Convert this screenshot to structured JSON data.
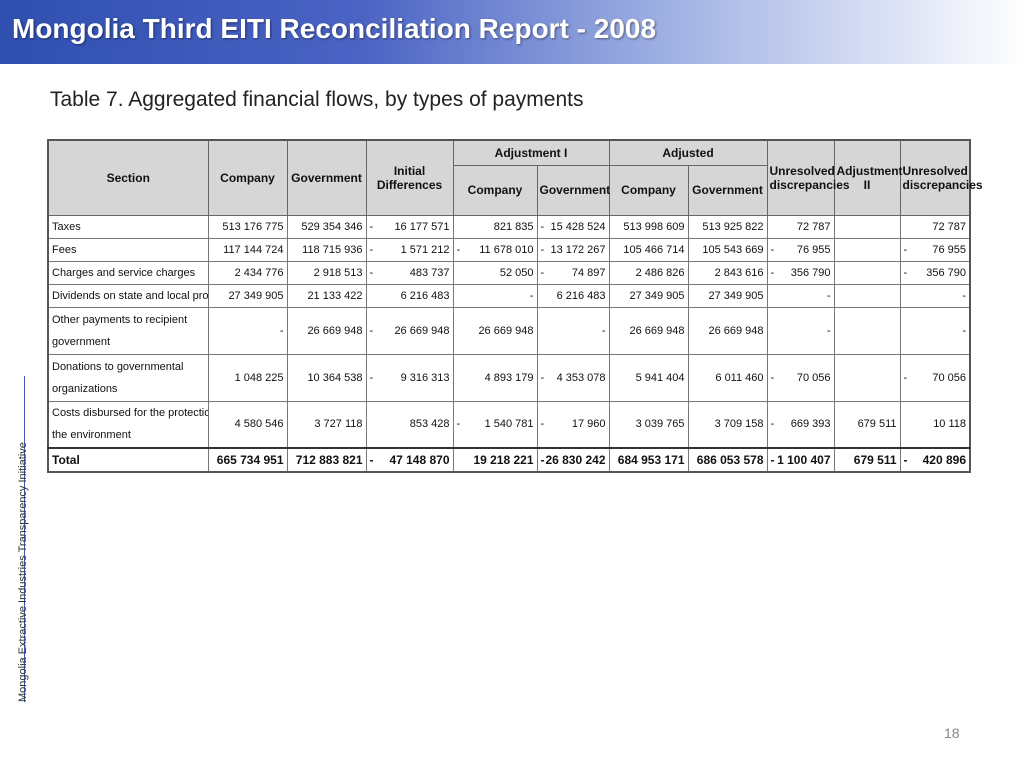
{
  "header": {
    "title": "Mongolia Third EITI Reconciliation Report - 2008",
    "subtitle": "Table 7. Aggregated financial flows, by types of payments"
  },
  "sidebar_text": "Mongolia Extractive Industries Transparency Initiative",
  "page_number": "18",
  "colors": {
    "title_bar_start": "#2f4fb0",
    "title_bar_end": "#ffffff",
    "header_cell": "#d6d6d6"
  },
  "table": {
    "headers": {
      "section": "Section",
      "company": "Company",
      "government": "Government",
      "initial_differences": "Initial Differences",
      "adjustment_i": "Adjustment I",
      "adj1_company": "Company",
      "adj1_government": "Government",
      "adjusted": "Adjusted",
      "adjusted_company": "Company",
      "adjusted_government": "Government",
      "unresolved_1": "Unresolved discrepancies",
      "adjustment_ii": "Adjustment II",
      "unresolved_2": "Unresolved discrepancies"
    },
    "rows": [
      {
        "section": [
          "Taxes"
        ],
        "company": "513 176 775",
        "government": "529 354 346",
        "init_neg": "-",
        "initial": "16 177 571",
        "adj1c_neg": "",
        "adj1c": "821 835",
        "adj1g_neg": "-",
        "adj1g": "15 428 524",
        "adjc": "513 998 609",
        "adjg": "513 925 822",
        "unr1_neg": "",
        "unr1": "72 787",
        "adj2": "",
        "unr2_neg": "",
        "unr2": "72 787"
      },
      {
        "section": [
          "Fees"
        ],
        "company": "117 144 724",
        "government": "118 715 936",
        "init_neg": "-",
        "initial": "1 571 212",
        "adj1c_neg": "-",
        "adj1c": "11 678 010",
        "adj1g_neg": "-",
        "adj1g": "13 172 267",
        "adjc": "105 466 714",
        "adjg": "105 543 669",
        "unr1_neg": "-",
        "unr1": "76 955",
        "adj2": "",
        "unr2_neg": "-",
        "unr2": "76 955"
      },
      {
        "section": [
          "Charges and service charges"
        ],
        "company": "2 434 776",
        "government": "2 918 513",
        "init_neg": "-",
        "initial": "483 737",
        "adj1c_neg": "",
        "adj1c": "52 050",
        "adj1g_neg": "-",
        "adj1g": "74 897",
        "adjc": "2 486 826",
        "adjg": "2 843 616",
        "unr1_neg": "-",
        "unr1": "356 790",
        "adj2": "",
        "unr2_neg": "-",
        "unr2": "356 790"
      },
      {
        "section": [
          "Dividends on state and local property"
        ],
        "company": "27 349 905",
        "government": "21 133 422",
        "init_neg": "",
        "initial": "6 216 483",
        "adj1c_neg": "",
        "adj1c": "-",
        "adj1g_neg": "",
        "adj1g": "6 216 483",
        "adjc": "27 349 905",
        "adjg": "27 349 905",
        "unr1_neg": "",
        "unr1": "-",
        "adj2": "",
        "unr2_neg": "",
        "unr2": "-"
      },
      {
        "section": [
          "Other payments to recipient",
          "government"
        ],
        "company": "-",
        "government": "26 669 948",
        "init_neg": "-",
        "initial": "26 669 948",
        "adj1c_neg": "",
        "adj1c": "26 669 948",
        "adj1g_neg": "",
        "adj1g": "-",
        "adjc": "26 669 948",
        "adjg": "26 669 948",
        "unr1_neg": "",
        "unr1": "-",
        "adj2": "",
        "unr2_neg": "",
        "unr2": "-"
      },
      {
        "section": [
          "Donations to governmental",
          "organizations"
        ],
        "company": "1 048 225",
        "government": "10 364 538",
        "init_neg": "-",
        "initial": "9 316 313",
        "adj1c_neg": "",
        "adj1c": "4 893 179",
        "adj1g_neg": "-",
        "adj1g": "4 353 078",
        "adjc": "5 941 404",
        "adjg": "6 011 460",
        "unr1_neg": "-",
        "unr1": "70 056",
        "adj2": "",
        "unr2_neg": "-",
        "unr2": "70 056"
      },
      {
        "section": [
          "Costs disbursed for the protection of",
          "the environment"
        ],
        "company": "4 580 546",
        "government": "3 727 118",
        "init_neg": "",
        "initial": "853 428",
        "adj1c_neg": "-",
        "adj1c": "1 540 781",
        "adj1g_neg": "-",
        "adj1g": "17 960",
        "adjc": "3 039 765",
        "adjg": "3 709 158",
        "unr1_neg": "-",
        "unr1": "669 393",
        "adj2": "679 511",
        "unr2_neg": "",
        "unr2": "10 118"
      }
    ],
    "total": {
      "section": "Total",
      "company": "665 734 951",
      "government": "712 883 821",
      "init_neg": "-",
      "initial": "47 148 870",
      "adj1c_neg": "",
      "adj1c": "19 218 221",
      "adj1g_neg": "-",
      "adj1g": "26 830 242",
      "adjc": "684 953 171",
      "adjg": "686 053 578",
      "unr1_neg": "-",
      "unr1": "1 100 407",
      "adj2": "679 511",
      "unr2_neg": "-",
      "unr2": "420 896"
    }
  }
}
